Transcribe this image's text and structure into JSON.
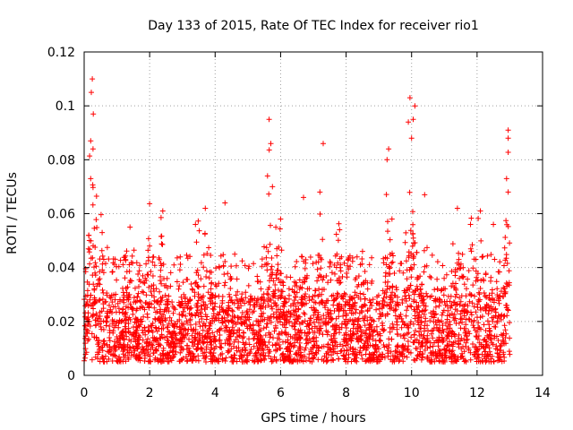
{
  "chart_data": {
    "type": "scatter",
    "title": "Day 133 of 2015, Rate Of TEC Index for receiver rio1",
    "xlabel": "GPS time / hours",
    "ylabel": "ROTI / TECUs",
    "xlim": [
      0,
      14
    ],
    "ylim": [
      0,
      0.12
    ],
    "xticks": [
      0,
      2,
      4,
      6,
      8,
      10,
      12,
      14
    ],
    "xtick_labels": [
      "0",
      "2",
      "4",
      "6",
      "8",
      "10",
      "12",
      "14"
    ],
    "yticks": [
      0,
      0.02,
      0.04,
      0.06,
      0.08,
      0.1,
      0.12
    ],
    "ytick_labels": [
      "0",
      "0.02",
      "0.04",
      "0.06",
      "0.08",
      "0.1",
      "0.12"
    ],
    "grid": true,
    "marker": "plus",
    "marker_color": "#ff0000",
    "x_data_range": [
      0,
      13
    ],
    "typical_band": [
      0.005,
      0.03
    ],
    "peaks": [
      {
        "x": 0.25,
        "y": 0.11
      },
      {
        "x": 0.22,
        "y": 0.105
      },
      {
        "x": 0.28,
        "y": 0.097
      },
      {
        "x": 0.2,
        "y": 0.087
      },
      {
        "x": 0.27,
        "y": 0.084
      },
      {
        "x": 0.2,
        "y": 0.073
      },
      {
        "x": 5.65,
        "y": 0.095
      },
      {
        "x": 5.7,
        "y": 0.086
      },
      {
        "x": 5.6,
        "y": 0.074
      },
      {
        "x": 5.75,
        "y": 0.07
      },
      {
        "x": 7.3,
        "y": 0.086
      },
      {
        "x": 9.95,
        "y": 0.103
      },
      {
        "x": 10.1,
        "y": 0.1
      },
      {
        "x": 10.05,
        "y": 0.095
      },
      {
        "x": 9.9,
        "y": 0.094
      },
      {
        "x": 10.0,
        "y": 0.088
      },
      {
        "x": 9.3,
        "y": 0.084
      },
      {
        "x": 9.25,
        "y": 0.08
      },
      {
        "x": 12.95,
        "y": 0.091
      },
      {
        "x": 12.95,
        "y": 0.088
      },
      {
        "x": 12.9,
        "y": 0.073
      },
      {
        "x": 12.95,
        "y": 0.068
      },
      {
        "x": 2.4,
        "y": 0.061
      },
      {
        "x": 3.7,
        "y": 0.062
      },
      {
        "x": 4.3,
        "y": 0.064
      },
      {
        "x": 6.7,
        "y": 0.066
      },
      {
        "x": 7.2,
        "y": 0.068
      },
      {
        "x": 10.4,
        "y": 0.067
      },
      {
        "x": 11.4,
        "y": 0.062
      },
      {
        "x": 12.1,
        "y": 0.061
      },
      {
        "x": 1.4,
        "y": 0.055
      },
      {
        "x": 0.55,
        "y": 0.053
      },
      {
        "x": 3.4,
        "y": 0.056
      },
      {
        "x": 6.0,
        "y": 0.058
      },
      {
        "x": 7.8,
        "y": 0.054
      },
      {
        "x": 9.4,
        "y": 0.058
      },
      {
        "x": 11.8,
        "y": 0.056
      },
      {
        "x": 12.5,
        "y": 0.056
      },
      {
        "x": 8.5,
        "y": 0.046
      },
      {
        "x": 2.0,
        "y": 0.048
      }
    ]
  }
}
